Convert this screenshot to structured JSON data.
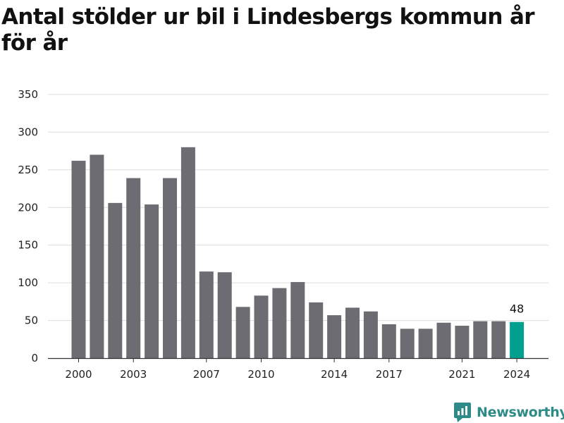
{
  "chart_data": {
    "type": "bar",
    "title": "Antal stölder ur bil i Lindesbergs kommun år för år",
    "xlabel": "",
    "ylabel": "",
    "categories": [
      "2000",
      "2001",
      "2002",
      "2003",
      "2004",
      "2005",
      "2006",
      "2007",
      "2008",
      "2009",
      "2010",
      "2011",
      "2012",
      "2013",
      "2014",
      "2015",
      "2016",
      "2017",
      "2018",
      "2019",
      "2020",
      "2021",
      "2022",
      "2023",
      "2024"
    ],
    "values": [
      262,
      270,
      206,
      239,
      204,
      239,
      280,
      115,
      114,
      68,
      83,
      93,
      101,
      74,
      57,
      67,
      62,
      45,
      39,
      39,
      47,
      43,
      49,
      49,
      48
    ],
    "x_tick_labels": [
      "2000",
      "2003",
      "2007",
      "2010",
      "2014",
      "2017",
      "2021",
      "2024"
    ],
    "y_ticks": [
      0,
      50,
      100,
      150,
      200,
      250,
      300,
      350
    ],
    "ylim": [
      0,
      350
    ],
    "grid": true,
    "bar_color": "#6d6c72",
    "highlight_color": "#00a08e",
    "highlight_index": 24,
    "data_labels": [
      {
        "category": "2024",
        "text": "48"
      }
    ]
  },
  "brand": {
    "name": "Newsworthy",
    "icon": "newsworthy-logo-icon",
    "color": "#2e8b87"
  }
}
